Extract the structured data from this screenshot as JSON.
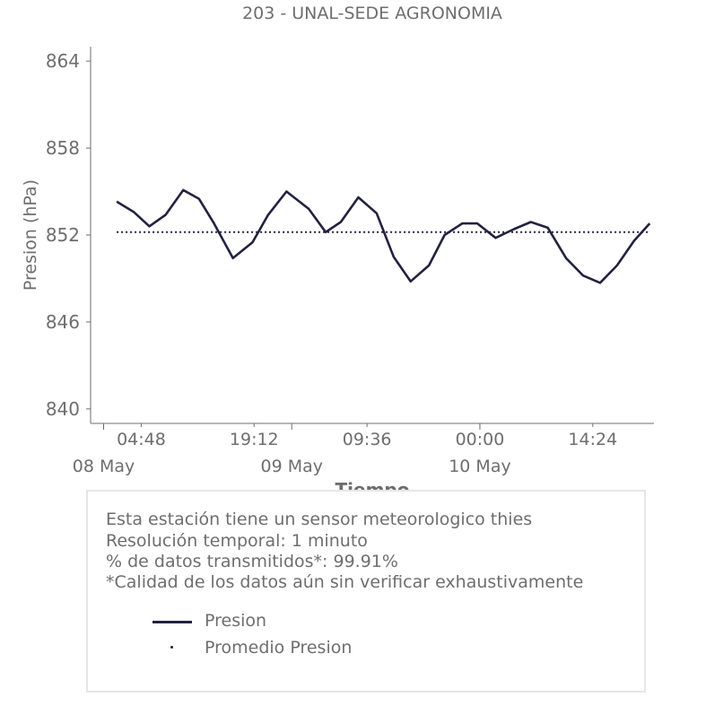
{
  "chart_data": {
    "type": "line",
    "title": "203 - UNAL-SEDE AGRONOMIA",
    "xlabel": "Tiempo",
    "ylabel": "Presion (hPa)",
    "ylim": [
      839,
      865
    ],
    "yticks": [
      840,
      846,
      852,
      858,
      864
    ],
    "x_time_ticks": [
      "04:48",
      "19:12",
      "09:36",
      "00:00",
      "14:24"
    ],
    "x_date_labels": [
      "08 May",
      "09 May",
      "10 May"
    ],
    "grid": false,
    "colors": {
      "series": "#22223f",
      "axis": "#6e6e6e"
    },
    "series": [
      {
        "name": "Presion",
        "style": "solid",
        "x": [
          "08 May 01:40",
          "08 May 03:50",
          "08 May 05:50",
          "08 May 07:55",
          "08 May 10:10",
          "08 May 12:10",
          "08 May 14:05",
          "08 May 16:30",
          "08 May 19:00",
          "08 May 21:00",
          "08 May 23:20",
          "09 May 02:10",
          "09 May 04:20",
          "09 May 06:15",
          "09 May 08:30",
          "09 May 10:50",
          "09 May 13:00",
          "09 May 15:10",
          "09 May 17:30",
          "09 May 19:30",
          "09 May 21:45",
          "09 May 23:40",
          "10 May 02:00",
          "10 May 04:20",
          "10 May 06:30",
          "10 May 08:40",
          "10 May 11:00",
          "10 May 13:10",
          "10 May 15:20",
          "10 May 17:30",
          "10 May 19:40",
          "10 May 21:40"
        ],
        "values": [
          854.3,
          853.6,
          852.6,
          853.4,
          855.1,
          854.5,
          852.8,
          850.4,
          851.5,
          853.4,
          855.0,
          853.8,
          852.2,
          852.9,
          854.6,
          853.5,
          850.5,
          848.8,
          849.9,
          852.0,
          852.8,
          852.8,
          851.8,
          852.4,
          852.9,
          852.5,
          850.4,
          849.2,
          848.7,
          849.9,
          851.6,
          852.8
        ]
      },
      {
        "name": "Promedio Presion",
        "style": "dotted",
        "x": [
          "08 May 01:40",
          "10 May 21:40"
        ],
        "values": [
          852.2,
          852.2
        ]
      }
    ]
  },
  "info": {
    "line1": "Esta estación tiene un sensor meteorologico thies",
    "line2": "Resolución temporal: 1 minuto",
    "line3": "% de datos transmitidos*: 99.91%",
    "line4": "*Calidad de los datos aún sin verificar exhaustivamente"
  },
  "legend": {
    "items": [
      {
        "label": "Presion",
        "color": "#22223f"
      },
      {
        "label": "Promedio Presion",
        "color": "#22223f"
      }
    ]
  }
}
